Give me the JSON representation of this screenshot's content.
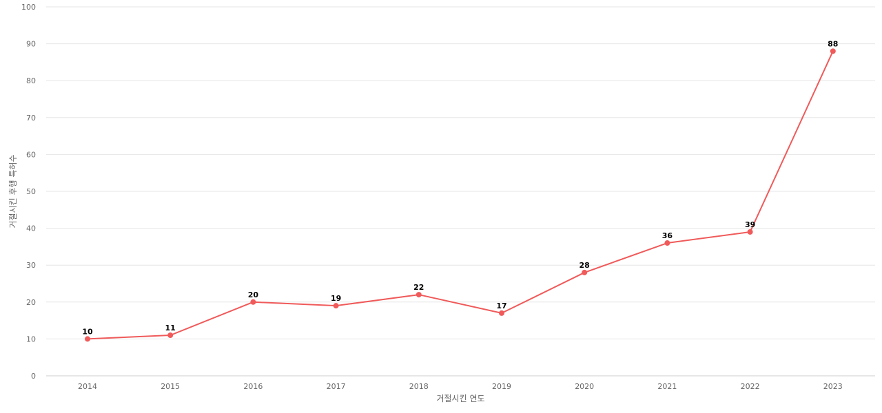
{
  "chart_data": {
    "type": "line",
    "title": "",
    "xlabel": "거절시킨 연도",
    "ylabel": "거절시킨 후행 특허수",
    "categories": [
      "2014",
      "2015",
      "2016",
      "2017",
      "2018",
      "2019",
      "2020",
      "2021",
      "2022",
      "2023"
    ],
    "series": [
      {
        "values": [
          10,
          11,
          20,
          19,
          22,
          17,
          28,
          36,
          39,
          88
        ],
        "color": "#f05a5a"
      }
    ],
    "ylim": [
      0,
      100
    ],
    "yticks": [
      0,
      10,
      20,
      30,
      40,
      50,
      60,
      70,
      80,
      90,
      100
    ],
    "grid": true,
    "legend": "none"
  }
}
